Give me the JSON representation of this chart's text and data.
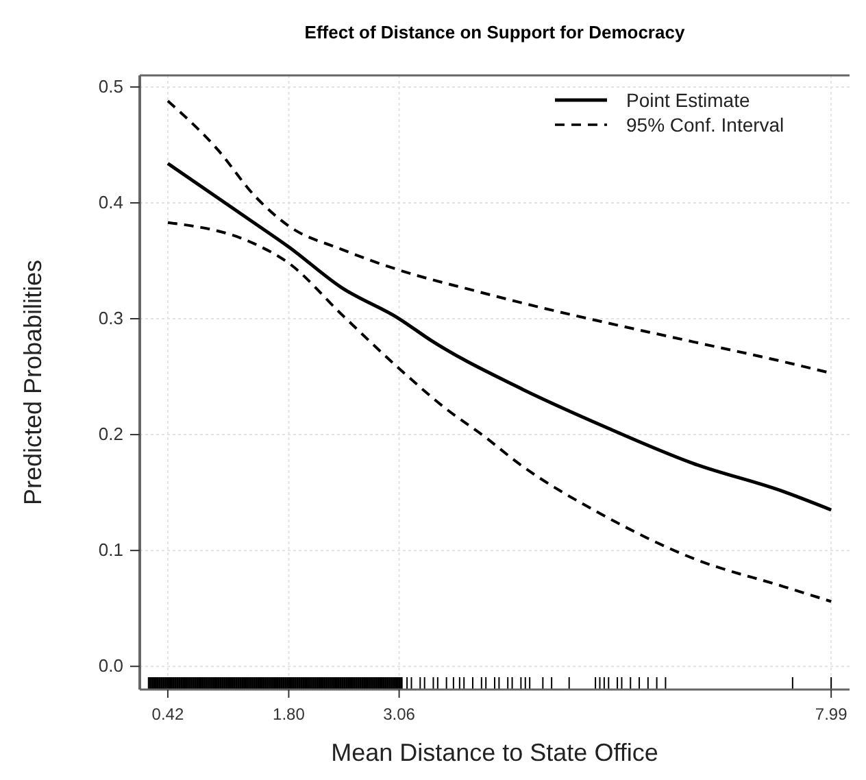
{
  "chart_data": {
    "type": "line",
    "title": "Effect of Distance on Support for Democracy",
    "xlabel": "Mean Distance to State Office",
    "ylabel": "Predicted Probabilities",
    "xlim": [
      0.1,
      8.2
    ],
    "ylim": [
      -0.02,
      0.51
    ],
    "xticks": [
      0.42,
      {
        "value": 1.8,
        "label": "1.80"
      },
      3.06,
      7.99
    ],
    "yticks": [
      {
        "value": 0,
        "label": "0.0"
      },
      0.1,
      0.2,
      0.3,
      0.4,
      0.5
    ],
    "grid": true,
    "legend": "top right",
    "series": [
      {
        "name": "Point Estimate",
        "color": "#000000",
        "line_style": "solid",
        "x": [
          0.42,
          1.4,
          1.8,
          2.4,
          3.06,
          3.43,
          4.39,
          5.4,
          6.42,
          7.44,
          7.99
        ],
        "values": [
          0.434,
          0.383,
          0.362,
          0.327,
          0.3,
          0.281,
          0.242,
          0.207,
          0.175,
          0.151,
          0.135
        ]
      },
      {
        "name": "95% Conf. Interval",
        "color": "#000000",
        "line_style": "dashed",
        "x": [
          0.42,
          1.0,
          1.4,
          1.8,
          2.4,
          3.06,
          3.93,
          4.39,
          5.4,
          6.42,
          7.44,
          7.99
        ],
        "values": [
          0.488,
          0.445,
          0.407,
          0.38,
          0.36,
          0.342,
          0.324,
          0.315,
          0.297,
          0.28,
          0.263,
          0.253
        ]
      },
      {
        "color": "#000000",
        "line_style": "dashed",
        "x": [
          0.42,
          1.4,
          1.8,
          2.4,
          3.06,
          3.6,
          4.04,
          4.39,
          5.4,
          6.42,
          7.44,
          7.99
        ],
        "values": [
          0.383,
          0.365,
          0.348,
          0.304,
          0.257,
          0.222,
          0.198,
          0.177,
          0.13,
          0.093,
          0.069,
          0.056
        ]
      }
    ]
  }
}
